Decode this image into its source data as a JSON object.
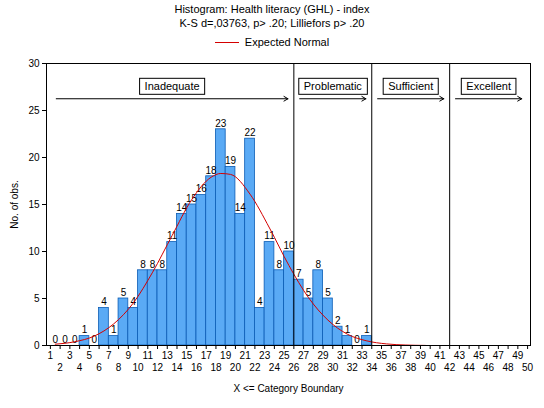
{
  "chart_data": {
    "type": "histogram",
    "title": "Histogram: Health literacy (GHL) - index",
    "subtitle": "K-S d=,03763, p> .20; Lilliefors p> .20",
    "x_label": "X <= Category Boundary",
    "y_label": "No. of obs.",
    "bins": [
      1,
      2,
      3,
      4,
      5,
      6,
      7,
      8,
      9,
      10,
      11,
      12,
      13,
      14,
      15,
      16,
      17,
      18,
      19,
      20,
      21,
      22,
      23,
      24,
      25,
      26,
      27,
      28,
      29,
      30,
      31,
      32,
      33,
      34
    ],
    "values": [
      0,
      0,
      0,
      1,
      0,
      4,
      1,
      5,
      4,
      8,
      8,
      8,
      11,
      14,
      15,
      16,
      18,
      23,
      19,
      14,
      22,
      4,
      11,
      8,
      10,
      7,
      5,
      8,
      5,
      2,
      1,
      0,
      1
    ],
    "color": "#5aaaf5",
    "data_labels": true,
    "series": [
      {
        "name": "Expected Normal",
        "type": "line",
        "color": "#d40000",
        "x": [
          1.5,
          3.5,
          5.5,
          7.5,
          9.5,
          11.5,
          13.5,
          15.5,
          17.5,
          18.5,
          19.5,
          21.5,
          23.5,
          25.5,
          27.5,
          29.5,
          31.5,
          33.5,
          35.5,
          37.5,
          39.5
        ],
        "values": [
          0.14,
          0.4,
          1.0,
          2.3,
          4.5,
          7.8,
          11.7,
          15.5,
          17.9,
          18.3,
          18.2,
          16.1,
          12.5,
          8.5,
          5.1,
          2.7,
          1.2,
          0.49,
          0.17,
          0.05,
          0.01
        ]
      }
    ],
    "legend": "top",
    "xlim": [
      0.6,
      50.3
    ],
    "xticks": [
      1,
      2,
      3,
      4,
      5,
      6,
      7,
      8,
      9,
      10,
      11,
      12,
      13,
      14,
      15,
      16,
      17,
      18,
      19,
      20,
      21,
      22,
      23,
      24,
      25,
      26,
      27,
      28,
      29,
      30,
      31,
      32,
      33,
      34,
      35,
      36,
      37,
      38,
      39,
      40,
      41,
      42,
      43,
      44,
      45,
      46,
      47,
      48,
      49,
      50
    ],
    "ylim": [
      0,
      30
    ],
    "yticks": [
      0,
      5,
      10,
      15,
      20,
      25,
      30
    ],
    "regions": [
      {
        "label": "Inadequate",
        "from": 1,
        "to": 26
      },
      {
        "label": "Problematic",
        "from": 26,
        "to": 34
      },
      {
        "label": "Sufficient",
        "from": 34,
        "to": 42
      },
      {
        "label": "Excellent",
        "from": 42,
        "to": 50
      }
    ]
  }
}
